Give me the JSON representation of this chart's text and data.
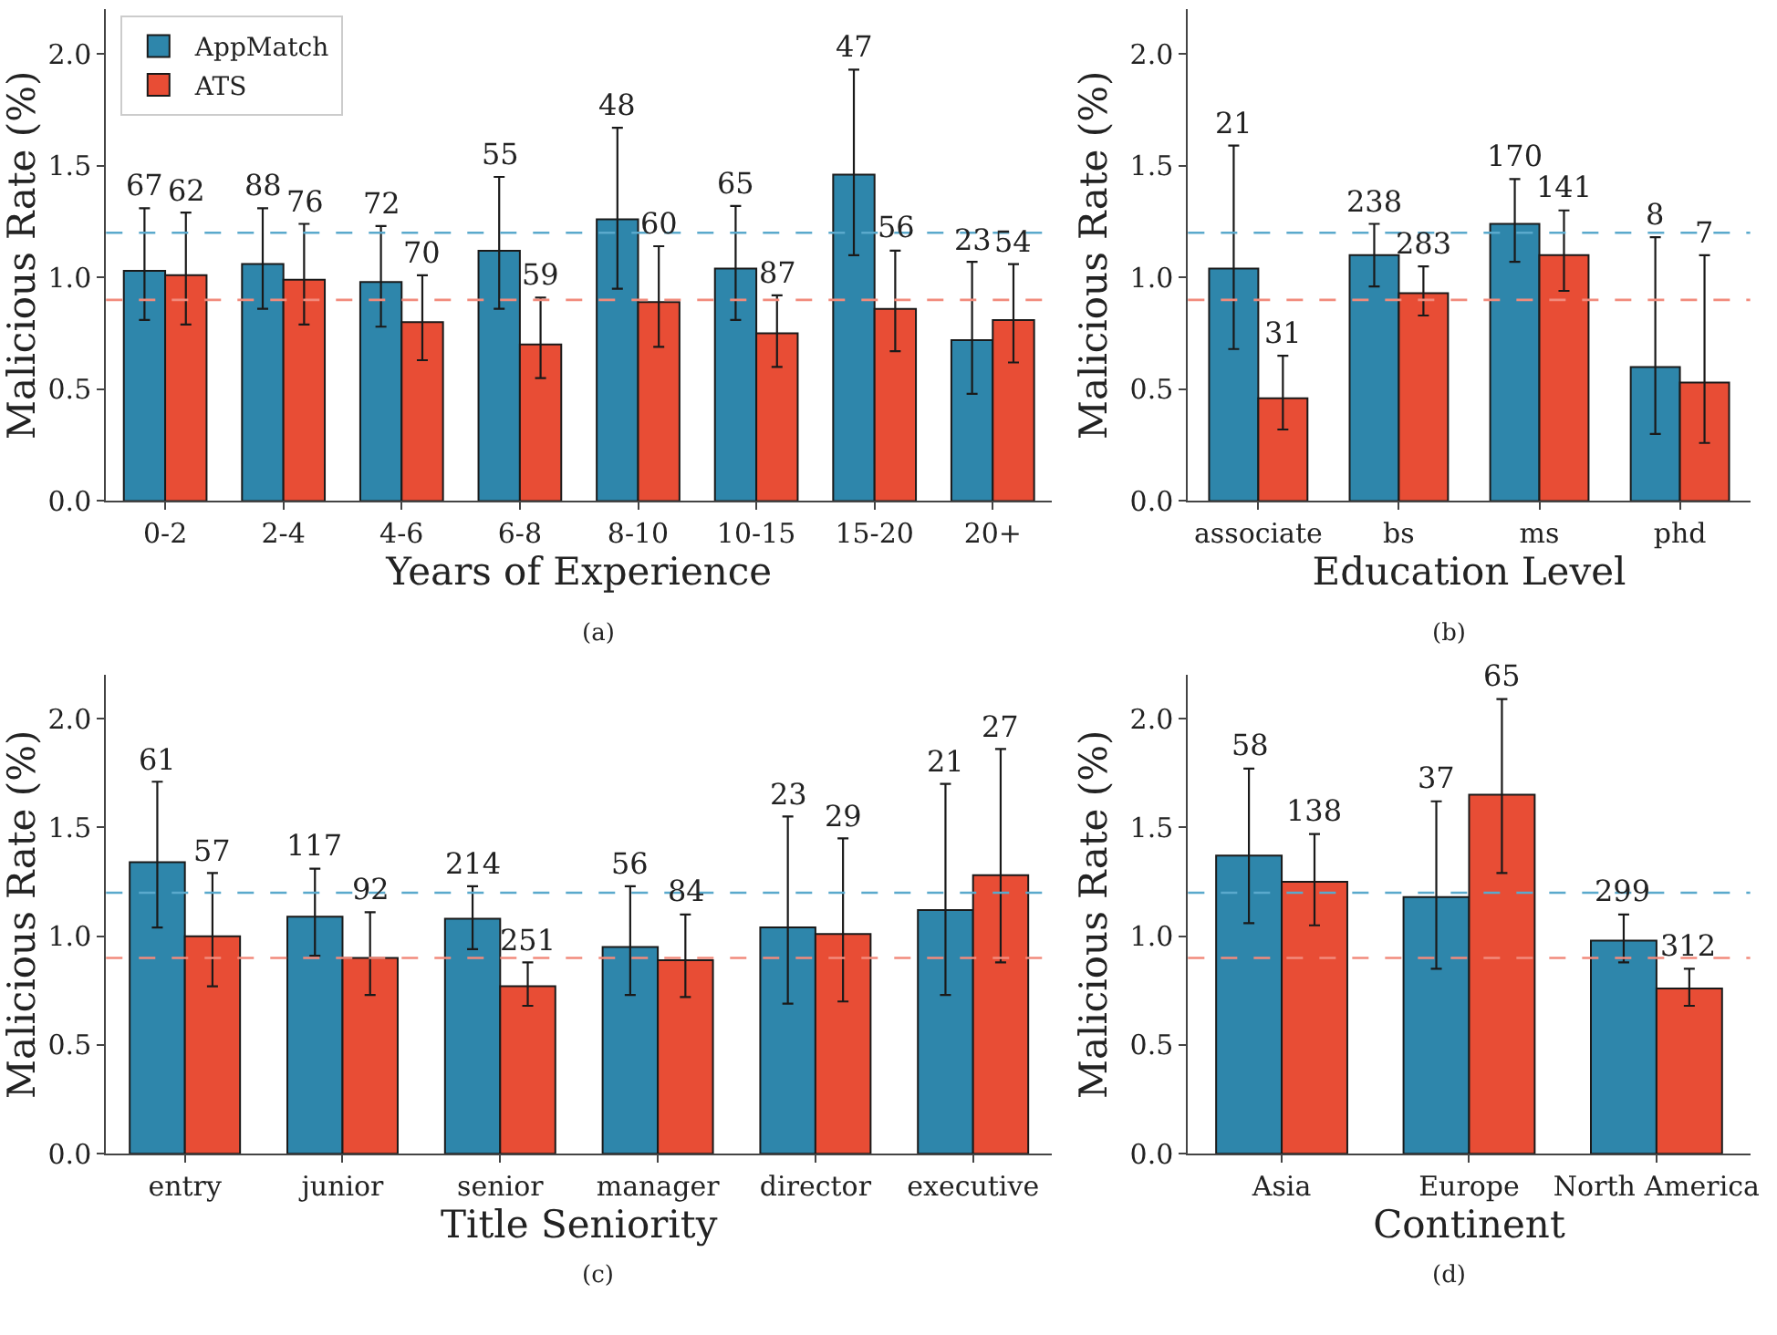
{
  "chart_data": [
    {
      "type": "bar",
      "xlabel": "Years of Experience",
      "ylabel": "Malicious Rate (%)",
      "categories": [
        "0-2",
        "2-4",
        "4-6",
        "6-8",
        "8-10",
        "10-15",
        "15-20",
        "20+"
      ],
      "ylim": [
        0,
        2.2
      ],
      "yticks": [
        {
          "value": 0,
          "label": "0.0"
        },
        {
          "value": 0.5,
          "label": "0.5"
        },
        {
          "value": 1,
          "label": "1.0"
        },
        {
          "value": 1.5,
          "label": "1.5"
        },
        {
          "value": 2,
          "label": "2.0"
        }
      ],
      "legend": "top left",
      "annotations": [
        "(a)",
        "67",
        "62",
        "88",
        "76",
        "72",
        "70",
        "55",
        "59",
        "48",
        "60",
        "65",
        "87",
        "47",
        "56",
        "23",
        "54"
      ],
      "series": [
        {
          "name": "AppMatch",
          "color": "#2e86ab",
          "values": [
            1.03,
            1.06,
            0.98,
            1.12,
            1.26,
            1.04,
            1.46,
            0.72
          ],
          "errors": [
            [
              0.81,
              1.31
            ],
            [
              0.86,
              1.31
            ],
            [
              0.78,
              1.23
            ],
            [
              0.86,
              1.45
            ],
            [
              0.95,
              1.67
            ],
            [
              0.81,
              1.32
            ],
            [
              1.1,
              1.93
            ],
            [
              0.48,
              1.07
            ]
          ]
        },
        {
          "name": "ATS",
          "color": "#e84d35",
          "values": [
            1.01,
            0.99,
            0.8,
            0.7,
            0.89,
            0.75,
            0.86,
            0.81
          ],
          "errors": [
            [
              0.79,
              1.29
            ],
            [
              0.79,
              1.24
            ],
            [
              0.63,
              1.01
            ],
            [
              0.55,
              0.91
            ],
            [
              0.69,
              1.14
            ],
            [
              0.6,
              0.92
            ],
            [
              0.67,
              1.12
            ],
            [
              0.62,
              1.06
            ]
          ]
        }
      ],
      "ref_lines": [
        {
          "axis": "y",
          "value": 1.2,
          "label": null,
          "color": "#5aa9cc",
          "line_style": "dashed"
        },
        {
          "axis": "y",
          "value": 0.9,
          "label": null,
          "color": "#f28b7c",
          "line_style": "dashed"
        }
      ]
    },
    {
      "type": "bar",
      "xlabel": "Education Level",
      "ylabel": "Malicious Rate (%)",
      "categories": [
        "associate",
        "bs",
        "ms",
        "phd"
      ],
      "ylim": [
        0,
        2.2
      ],
      "yticks": [
        {
          "value": 0,
          "label": "0.0"
        },
        {
          "value": 0.5,
          "label": "0.5"
        },
        {
          "value": 1,
          "label": "1.0"
        },
        {
          "value": 1.5,
          "label": "1.5"
        },
        {
          "value": 2,
          "label": "2.0"
        }
      ],
      "annotations": [
        "(b)",
        "21",
        "31",
        "238",
        "283",
        "170",
        "141",
        "8",
        "7"
      ],
      "series": [
        {
          "color": "#2e86ab",
          "values": [
            1.04,
            1.1,
            1.24,
            0.6
          ],
          "errors": [
            [
              0.68,
              1.59
            ],
            [
              0.96,
              1.24
            ],
            [
              1.07,
              1.44
            ],
            [
              0.3,
              1.18
            ]
          ]
        },
        {
          "color": "#e84d35",
          "values": [
            0.46,
            0.93,
            1.1,
            0.53
          ],
          "errors": [
            [
              0.32,
              0.65
            ],
            [
              0.83,
              1.05
            ],
            [
              0.94,
              1.3
            ],
            [
              0.26,
              1.1
            ]
          ]
        }
      ],
      "ref_lines": [
        {
          "axis": "y",
          "value": 1.2,
          "label": null,
          "color": "#5aa9cc",
          "line_style": "dashed"
        },
        {
          "axis": "y",
          "value": 0.9,
          "label": null,
          "color": "#f28b7c",
          "line_style": "dashed"
        }
      ]
    },
    {
      "type": "bar",
      "xlabel": "Title Seniority",
      "ylabel": "Malicious Rate (%)",
      "categories": [
        "entry",
        "junior",
        "senior",
        "manager",
        "director",
        "executive"
      ],
      "ylim": [
        0,
        2.2
      ],
      "yticks": [
        {
          "value": 0,
          "label": "0.0"
        },
        {
          "value": 0.5,
          "label": "0.5"
        },
        {
          "value": 1,
          "label": "1.0"
        },
        {
          "value": 1.5,
          "label": "1.5"
        },
        {
          "value": 2,
          "label": "2.0"
        }
      ],
      "annotations": [
        "(c)",
        "61",
        "57",
        "117",
        "92",
        "214",
        "251",
        "56",
        "84",
        "23",
        "29",
        "21",
        "27"
      ],
      "series": [
        {
          "color": "#2e86ab",
          "values": [
            1.34,
            1.09,
            1.08,
            0.95,
            1.04,
            1.12
          ],
          "errors": [
            [
              1.04,
              1.71
            ],
            [
              0.91,
              1.31
            ],
            [
              0.94,
              1.23
            ],
            [
              0.73,
              1.23
            ],
            [
              0.69,
              1.55
            ],
            [
              0.73,
              1.7
            ]
          ]
        },
        {
          "color": "#e84d35",
          "values": [
            1.0,
            0.9,
            0.77,
            0.89,
            1.01,
            1.28
          ],
          "errors": [
            [
              0.77,
              1.29
            ],
            [
              0.73,
              1.11
            ],
            [
              0.68,
              0.88
            ],
            [
              0.72,
              1.1
            ],
            [
              0.7,
              1.45
            ],
            [
              0.88,
              1.86
            ]
          ]
        }
      ],
      "ref_lines": [
        {
          "axis": "y",
          "value": 1.2,
          "label": null,
          "color": "#5aa9cc",
          "line_style": "dashed"
        },
        {
          "axis": "y",
          "value": 0.9,
          "label": null,
          "color": "#f28b7c",
          "line_style": "dashed"
        }
      ]
    },
    {
      "type": "bar",
      "xlabel": "Continent",
      "ylabel": "Malicious Rate (%)",
      "categories": [
        "Asia",
        "Europe",
        "North America"
      ],
      "ylim": [
        0,
        2.2
      ],
      "yticks": [
        {
          "value": 0,
          "label": "0.0"
        },
        {
          "value": 0.5,
          "label": "0.5"
        },
        {
          "value": 1,
          "label": "1.0"
        },
        {
          "value": 1.5,
          "label": "1.5"
        },
        {
          "value": 2,
          "label": "2.0"
        }
      ],
      "annotations": [
        "(d)",
        "58",
        "138",
        "37",
        "65",
        "299",
        "312"
      ],
      "series": [
        {
          "color": "#2e86ab",
          "values": [
            1.37,
            1.18,
            0.98
          ],
          "errors": [
            [
              1.06,
              1.77
            ],
            [
              0.85,
              1.62
            ],
            [
              0.88,
              1.1
            ]
          ]
        },
        {
          "color": "#e84d35",
          "values": [
            1.25,
            1.65,
            0.76
          ],
          "errors": [
            [
              1.05,
              1.47
            ],
            [
              1.29,
              2.09
            ],
            [
              0.68,
              0.85
            ]
          ]
        }
      ],
      "ref_lines": [
        {
          "axis": "y",
          "value": 1.2,
          "label": null,
          "color": "#5aa9cc",
          "line_style": "dashed"
        },
        {
          "axis": "y",
          "value": 0.9,
          "label": null,
          "color": "#f28b7c",
          "line_style": "dashed"
        }
      ]
    }
  ]
}
